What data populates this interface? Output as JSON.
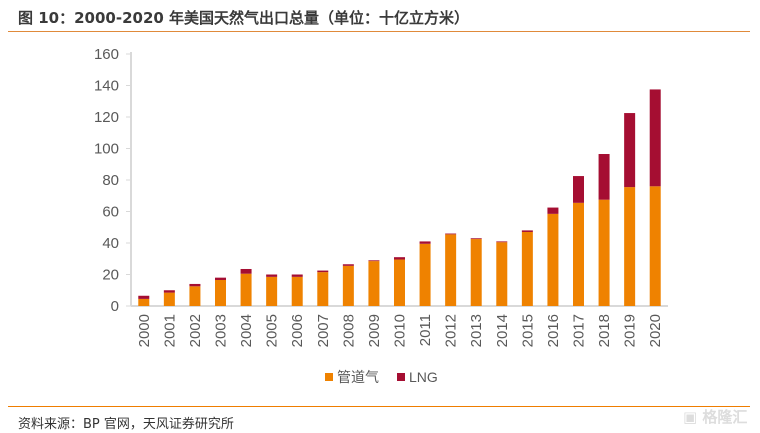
{
  "title": "图 10：2000-2020 年美国天然气出口总量（单位：十亿立方米）",
  "source": "资料来源：BP 官网，天风证券研究所",
  "watermark": "格隆汇",
  "colors": {
    "pipeline": "#ef8200",
    "lng": "#a50e32",
    "rule": "#ef7d00"
  },
  "chart_data": {
    "type": "bar",
    "stacked": true,
    "categories": [
      "2000",
      "2001",
      "2002",
      "2003",
      "2004",
      "2005",
      "2006",
      "2007",
      "2008",
      "2009",
      "2010",
      "2011",
      "2012",
      "2013",
      "2014",
      "2015",
      "2016",
      "2017",
      "2018",
      "2019",
      "2020"
    ],
    "series": [
      {
        "name": "管道气",
        "values": [
          4.5,
          8.5,
          12.5,
          16.5,
          20.5,
          18.5,
          18.5,
          21.5,
          25.5,
          28.5,
          29.5,
          39.5,
          45.5,
          42.5,
          40.5,
          47,
          58.5,
          65.5,
          67.5,
          75.5,
          76
        ]
      },
      {
        "name": "LNG",
        "values": [
          2,
          1.5,
          1.5,
          1.5,
          3,
          1.5,
          1.5,
          1,
          1,
          0.5,
          1.5,
          1.5,
          0.5,
          0.5,
          0.5,
          1,
          4,
          17,
          29,
          47,
          61.5
        ]
      }
    ],
    "ylim": [
      0,
      160
    ],
    "yticks": [
      0,
      20,
      40,
      60,
      80,
      100,
      120,
      140,
      160
    ],
    "grid": false,
    "legend": "bottom"
  }
}
